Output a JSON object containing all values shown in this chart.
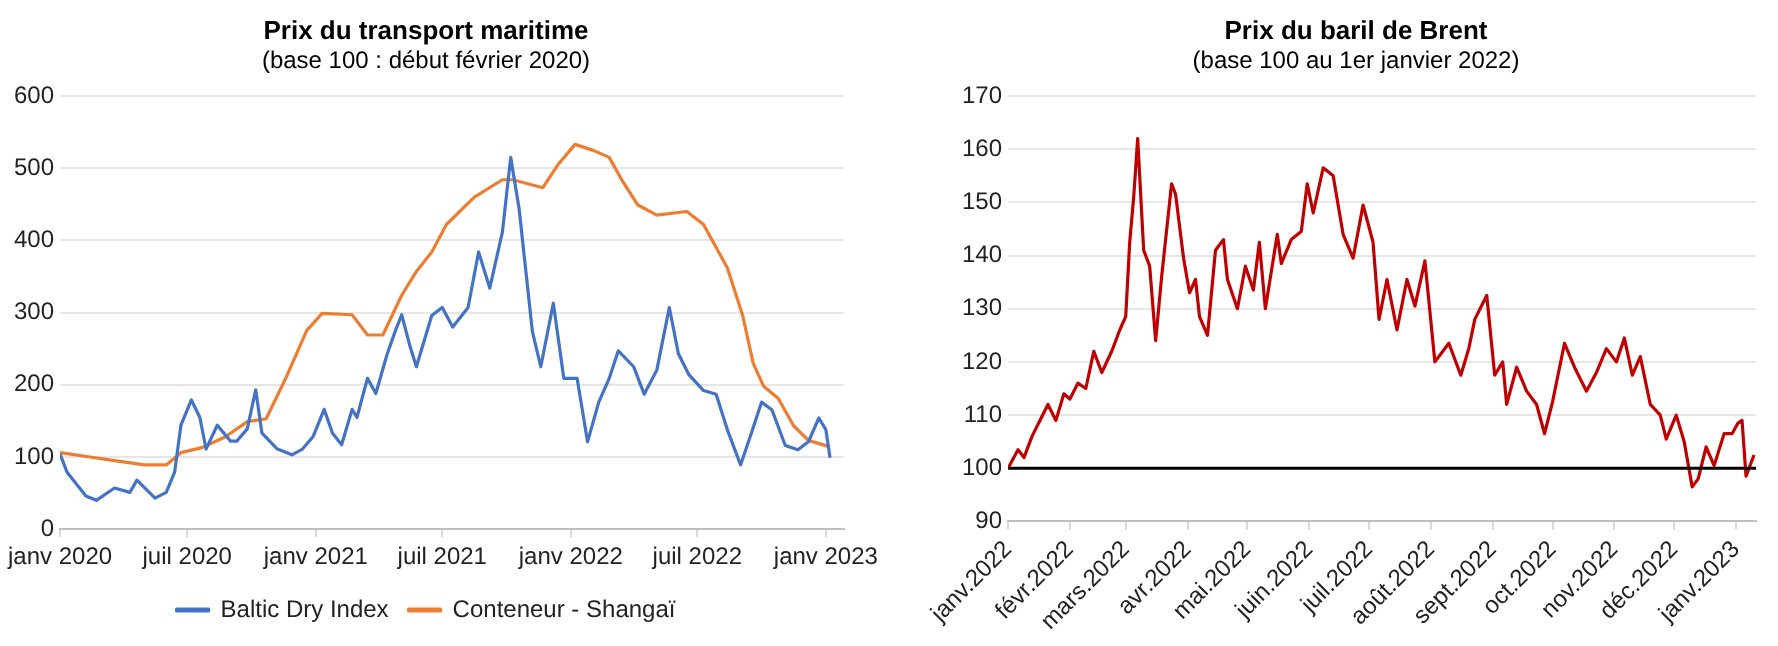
{
  "chart_data": [
    {
      "type": "line",
      "title": "Prix du transport maritime",
      "subtitle": "(base 100 : début février 2020)",
      "xlim": [
        "2020-01-01",
        "2023-01-27"
      ],
      "xticks": [
        {
          "value": "2020-01-01",
          "label": "janv 2020"
        },
        {
          "value": "2020-07-01",
          "label": "juil 2020"
        },
        {
          "value": "2021-01-01",
          "label": "janv 2021"
        },
        {
          "value": "2021-07-01",
          "label": "juil 2021"
        },
        {
          "value": "2022-01-01",
          "label": "janv 2022"
        },
        {
          "value": "2022-07-01",
          "label": "juil 2022"
        },
        {
          "value": "2023-01-01",
          "label": "janv 2023"
        }
      ],
      "ylim": [
        0,
        600
      ],
      "yticks": [
        0,
        100,
        200,
        300,
        400,
        500,
        600
      ],
      "grid": "y",
      "legend": "bottom",
      "series": [
        {
          "name": "Baltic Dry Index",
          "color": "#4472c4",
          "x": [
            "2020-01-01",
            "2020-01-11",
            "2020-02-07",
            "2020-02-22",
            "2020-03-19",
            "2020-04-10",
            "2020-04-20",
            "2020-05-16",
            "2020-06-01",
            "2020-06-13",
            "2020-06-22",
            "2020-07-07",
            "2020-07-19",
            "2020-07-28",
            "2020-08-13",
            "2020-09-01",
            "2020-09-10",
            "2020-09-25",
            "2020-10-07",
            "2020-10-16",
            "2020-11-07",
            "2020-11-28",
            "2020-12-13",
            "2020-12-28",
            "2021-01-13",
            "2021-01-25",
            "2021-02-07",
            "2021-02-22",
            "2021-03-01",
            "2021-03-16",
            "2021-03-28",
            "2021-04-13",
            "2021-04-25",
            "2021-05-04",
            "2021-05-16",
            "2021-05-25",
            "2021-06-16",
            "2021-07-01",
            "2021-07-16",
            "2021-08-07",
            "2021-08-22",
            "2021-09-07",
            "2021-09-25",
            "2021-10-07",
            "2021-10-19",
            "2021-11-07",
            "2021-11-19",
            "2021-12-07",
            "2021-12-22",
            "2022-01-10",
            "2022-01-25",
            "2022-02-10",
            "2022-02-25",
            "2022-03-10",
            "2022-04-01",
            "2022-04-16",
            "2022-05-04",
            "2022-05-22",
            "2022-06-04",
            "2022-06-19",
            "2022-07-10",
            "2022-07-28",
            "2022-08-13",
            "2022-09-01",
            "2022-09-16",
            "2022-10-01",
            "2022-10-16",
            "2022-11-04",
            "2022-11-22",
            "2022-12-07",
            "2022-12-22",
            "2023-01-01",
            "2023-01-07"
          ],
          "values": [
            104,
            79,
            46,
            40,
            57,
            51,
            68,
            43,
            51,
            79,
            144,
            179,
            155,
            111,
            144,
            122,
            122,
            139,
            193,
            133,
            111,
            103,
            111,
            128,
            166,
            133,
            117,
            166,
            155,
            209,
            188,
            242,
            275,
            297,
            253,
            225,
            296,
            307,
            280,
            307,
            384,
            334,
            411,
            515,
            444,
            274,
            225,
            313,
            209,
            209,
            121,
            176,
            209,
            247,
            225,
            187,
            220,
            307,
            243,
            214,
            192,
            187,
            138,
            89,
            132,
            176,
            165,
            116,
            110,
            121,
            154,
            138,
            99
          ]
        },
        {
          "name": "Conteneur - Shangaï",
          "color": "#ed7d31",
          "x": [
            "2020-01-01",
            "2020-02-13",
            "2020-03-19",
            "2020-05-01",
            "2020-06-01",
            "2020-06-22",
            "2020-07-22",
            "2020-08-25",
            "2020-09-25",
            "2020-10-22",
            "2020-11-19",
            "2020-12-19",
            "2021-01-10",
            "2021-02-22",
            "2021-03-16",
            "2021-04-07",
            "2021-05-04",
            "2021-05-25",
            "2021-06-16",
            "2021-07-07",
            "2021-08-16",
            "2021-09-25",
            "2021-10-10",
            "2021-11-22",
            "2021-12-13",
            "2022-01-07",
            "2022-02-04",
            "2022-02-25",
            "2022-03-16",
            "2022-04-07",
            "2022-05-04",
            "2022-06-16",
            "2022-07-10",
            "2022-08-13",
            "2022-09-04",
            "2022-09-19",
            "2022-10-04",
            "2022-10-25",
            "2022-11-16",
            "2022-12-07",
            "2023-01-07"
          ],
          "values": [
            106,
            100,
            95,
            89,
            89,
            106,
            113,
            128,
            149,
            153,
            209,
            275,
            299,
            297,
            269,
            269,
            324,
            357,
            384,
            422,
            460,
            484,
            484,
            473,
            504,
            533,
            524,
            515,
            482,
            449,
            435,
            440,
            422,
            362,
            296,
            230,
            198,
            181,
            143,
            123,
            114
          ]
        }
      ]
    },
    {
      "type": "line",
      "title": "Prix du baril de Brent",
      "subtitle": "(base 100 au 1er janvier 2022)",
      "xlim": [
        "2022-01-01",
        "2023-01-11"
      ],
      "xticks": [
        {
          "value": "2022-01-01",
          "label": "janv.2022"
        },
        {
          "value": "2022-02-01",
          "label": "févr.2022"
        },
        {
          "value": "2022-03-01",
          "label": "mars.2022"
        },
        {
          "value": "2022-04-01",
          "label": "avr.2022"
        },
        {
          "value": "2022-05-01",
          "label": "mai.2022"
        },
        {
          "value": "2022-06-01",
          "label": "juin.2022"
        },
        {
          "value": "2022-07-01",
          "label": "juil.2022"
        },
        {
          "value": "2022-08-01",
          "label": "août.2022"
        },
        {
          "value": "2022-09-01",
          "label": "sept.2022"
        },
        {
          "value": "2022-10-01",
          "label": "oct.2022"
        },
        {
          "value": "2022-11-01",
          "label": "nov.2022"
        },
        {
          "value": "2022-12-01",
          "label": "déc.2022"
        },
        {
          "value": "2023-01-01",
          "label": "janv.2023"
        }
      ],
      "ylim": [
        90,
        170
      ],
      "yticks": [
        90,
        100,
        110,
        120,
        130,
        140,
        150,
        160,
        170
      ],
      "grid": "y",
      "ref_lines": [
        {
          "axis": "y",
          "value": 100,
          "color": "#000000"
        }
      ],
      "series": [
        {
          "color": "#c00000",
          "x": [
            "2022-01-01",
            "2022-01-06",
            "2022-01-09",
            "2022-01-13",
            "2022-01-17",
            "2022-01-21",
            "2022-01-25",
            "2022-01-29",
            "2022-02-01",
            "2022-02-05",
            "2022-02-09",
            "2022-02-13",
            "2022-02-17",
            "2022-02-22",
            "2022-02-26",
            "2022-03-01",
            "2022-03-03",
            "2022-03-05",
            "2022-03-07",
            "2022-03-10",
            "2022-03-13",
            "2022-03-16",
            "2022-03-19",
            "2022-03-24",
            "2022-03-26",
            "2022-03-30",
            "2022-04-02",
            "2022-04-05",
            "2022-04-07",
            "2022-04-11",
            "2022-04-15",
            "2022-04-19",
            "2022-04-21",
            "2022-04-26",
            "2022-04-30",
            "2022-05-04",
            "2022-05-07",
            "2022-05-10",
            "2022-05-16",
            "2022-05-18",
            "2022-05-23",
            "2022-05-28",
            "2022-05-31",
            "2022-06-03",
            "2022-06-08",
            "2022-06-13",
            "2022-06-18",
            "2022-06-23",
            "2022-06-28",
            "2022-07-03",
            "2022-07-06",
            "2022-07-10",
            "2022-07-15",
            "2022-07-20",
            "2022-07-24",
            "2022-07-29",
            "2022-08-03",
            "2022-08-10",
            "2022-08-16",
            "2022-08-20",
            "2022-08-23",
            "2022-08-29",
            "2022-09-02",
            "2022-09-06",
            "2022-09-08",
            "2022-09-13",
            "2022-09-18",
            "2022-09-23",
            "2022-09-27",
            "2022-10-01",
            "2022-10-07",
            "2022-10-12",
            "2022-10-18",
            "2022-10-23",
            "2022-10-28",
            "2022-11-02",
            "2022-11-06",
            "2022-11-10",
            "2022-11-14",
            "2022-11-19",
            "2022-11-24",
            "2022-11-27",
            "2022-12-02",
            "2022-12-06",
            "2022-12-10",
            "2022-12-13",
            "2022-12-17",
            "2022-12-21",
            "2022-12-26",
            "2022-12-30",
            "2023-01-02",
            "2023-01-04",
            "2023-01-06",
            "2023-01-10"
          ],
          "values": [
            100,
            103.5,
            102,
            106,
            109,
            112,
            109,
            114,
            113,
            116,
            115,
            122,
            118,
            122,
            126,
            128.5,
            142.5,
            151,
            162,
            141,
            138,
            124,
            136,
            153.5,
            151.5,
            139.5,
            133,
            135.5,
            128.5,
            125,
            141,
            143,
            135.5,
            130,
            138,
            133.5,
            142.5,
            130,
            144,
            138.5,
            143,
            144.5,
            153.5,
            148,
            156.5,
            155,
            144,
            139.5,
            149.5,
            142.5,
            128,
            135.5,
            126,
            135.5,
            130.5,
            139,
            120,
            123.5,
            117.5,
            122.5,
            128,
            132.5,
            117.5,
            120,
            112,
            119,
            114.5,
            112,
            106.5,
            112.5,
            123.5,
            119,
            114.5,
            118,
            122.5,
            120,
            124.5,
            117.5,
            121,
            112,
            110,
            105.5,
            110,
            105,
            96.5,
            98,
            104,
            100.5,
            106.5,
            106.5,
            108.5,
            109,
            98.5,
            102.5
          ]
        }
      ]
    }
  ]
}
